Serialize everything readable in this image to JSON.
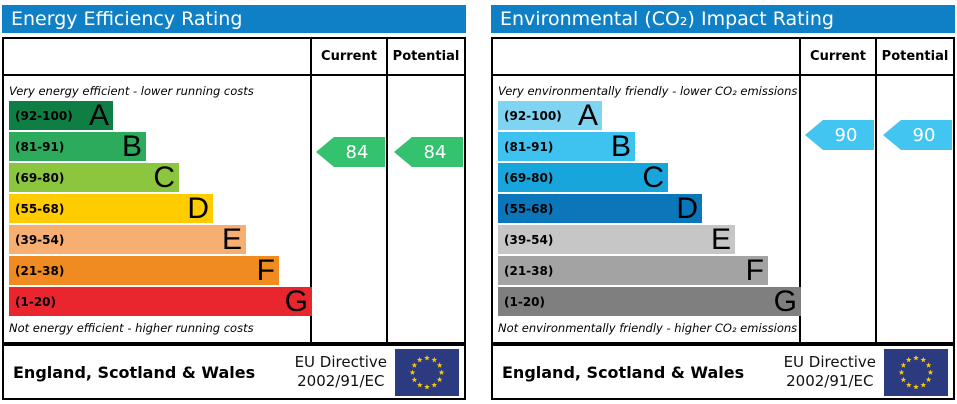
{
  "chart_data": [
    {
      "type": "bar",
      "title": "Energy Efficiency Rating",
      "categories": [
        "A (92-100)",
        "B (81-91)",
        "C (69-80)",
        "D (55-68)",
        "E (39-54)",
        "F (21-38)",
        "G (1-20)"
      ],
      "series": [
        {
          "name": "Current",
          "values": [
            84
          ]
        },
        {
          "name": "Potential",
          "values": [
            84
          ]
        }
      ],
      "current_band": "B",
      "potential_band": "B",
      "top_caption": "Very energy efficient - lower running costs",
      "bottom_caption": "Not energy efficient - higher running costs",
      "ylim": [
        1,
        100
      ],
      "legend_position": "top-right-columns"
    },
    {
      "type": "bar",
      "title": "Environmental (CO₂) Impact Rating",
      "categories": [
        "A (92-100)",
        "B (81-91)",
        "C (69-80)",
        "D (55-68)",
        "E (39-54)",
        "F (21-38)",
        "G (1-20)"
      ],
      "series": [
        {
          "name": "Current",
          "values": [
            90
          ]
        },
        {
          "name": "Potential",
          "values": [
            90
          ]
        }
      ],
      "current_band": "B",
      "potential_band": "B",
      "top_caption": "Very environmentally friendly - lower CO₂ emissions",
      "bottom_caption": "Not environmentally friendly - higher CO₂ emissions",
      "ylim": [
        1,
        100
      ],
      "legend_position": "top-right-columns"
    }
  ],
  "panels": [
    {
      "title": "Energy Efficiency Rating",
      "title_color": "#0f80c5",
      "columns": {
        "current": "Current",
        "potential": "Potential"
      },
      "top_caption": "Very energy efficient - lower running costs",
      "bottom_caption": "Not energy efficient - higher running costs",
      "bands": [
        {
          "range": "(92-100)",
          "letter": "A",
          "min": 92,
          "max": 100,
          "color": "#0e7e45"
        },
        {
          "range": "(81-91)",
          "letter": "B",
          "min": 81,
          "max": 91,
          "color": "#2dab5c"
        },
        {
          "range": "(69-80)",
          "letter": "C",
          "min": 69,
          "max": 80,
          "color": "#8cc63f"
        },
        {
          "range": "(55-68)",
          "letter": "D",
          "min": 55,
          "max": 68,
          "color": "#ffcc00"
        },
        {
          "range": "(39-54)",
          "letter": "E",
          "min": 39,
          "max": 54,
          "color": "#f7ae71"
        },
        {
          "range": "(21-38)",
          "letter": "F",
          "min": 21,
          "max": 38,
          "color": "#f08b22"
        },
        {
          "range": "(1-20)",
          "letter": "G",
          "min": 1,
          "max": 20,
          "color": "#e9262d"
        }
      ],
      "current": {
        "value": "84",
        "color": "#34c26e"
      },
      "potential": {
        "value": "84",
        "color": "#34c26e"
      },
      "footer": {
        "region": "England, Scotland & Wales",
        "directive_line1": "EU Directive",
        "directive_line2": "2002/91/EC"
      }
    },
    {
      "title": "Environmental (CO₂) Impact Rating",
      "title_color": "#0f80c5",
      "columns": {
        "current": "Current",
        "potential": "Potential"
      },
      "top_caption": "Very environmentally friendly - lower CO₂ emissions",
      "bottom_caption": "Not environmentally friendly - higher CO₂ emissions",
      "bands": [
        {
          "range": "(92-100)",
          "letter": "A",
          "min": 92,
          "max": 100,
          "color": "#7fd4f2"
        },
        {
          "range": "(81-91)",
          "letter": "B",
          "min": 81,
          "max": 91,
          "color": "#3ec2ef"
        },
        {
          "range": "(69-80)",
          "letter": "C",
          "min": 69,
          "max": 80,
          "color": "#17a5dc"
        },
        {
          "range": "(55-68)",
          "letter": "D",
          "min": 55,
          "max": 68,
          "color": "#0c76bb"
        },
        {
          "range": "(39-54)",
          "letter": "E",
          "min": 39,
          "max": 54,
          "color": "#c6c6c6"
        },
        {
          "range": "(21-38)",
          "letter": "F",
          "min": 21,
          "max": 38,
          "color": "#a3a3a3"
        },
        {
          "range": "(1-20)",
          "letter": "G",
          "min": 1,
          "max": 20,
          "color": "#7f7f7f"
        }
      ],
      "current": {
        "value": "90",
        "color": "#42c5f0"
      },
      "potential": {
        "value": "90",
        "color": "#42c5f0"
      },
      "footer": {
        "region": "England, Scotland & Wales",
        "directive_line1": "EU Directive",
        "directive_line2": "2002/91/EC"
      }
    }
  ],
  "eu_flag": {
    "field_color": "#2c3a80",
    "star_color": "#ffcc00"
  }
}
